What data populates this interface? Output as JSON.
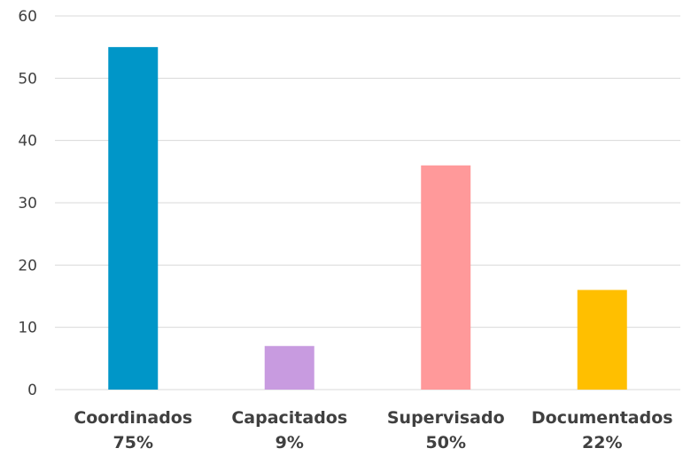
{
  "chart_data": {
    "type": "bar",
    "categories": [
      "Coordinados",
      "Capacitados",
      "Supervisado",
      "Documentados"
    ],
    "category_percents": [
      "75%",
      "9%",
      "50%",
      "22%"
    ],
    "values": [
      55,
      7,
      36,
      16
    ],
    "colors": [
      "#0096c8",
      "#c89be0",
      "#ff999a",
      "#ffbf00"
    ],
    "ylim": [
      0,
      60
    ],
    "yticks": [
      0,
      10,
      20,
      30,
      40,
      50,
      60
    ],
    "grid": true,
    "title": "",
    "xlabel": "",
    "ylabel": ""
  }
}
